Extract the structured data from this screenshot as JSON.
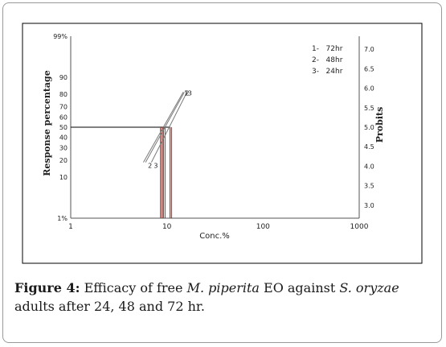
{
  "chart_data": {
    "type": "line",
    "xlabel": "Conc.%",
    "ylabel": "Response percentage",
    "y2label": "Probits",
    "x_scale": "log",
    "y_scale": "probit",
    "xlim": [
      1,
      1000
    ],
    "ylim": [
      1,
      99
    ],
    "y2lim": [
      2.67,
      7.33
    ],
    "x_ticks": [
      "1",
      "10",
      "100",
      "1000"
    ],
    "y_ticks": [
      "99%",
      "90",
      "80",
      "70",
      "60",
      "50",
      "40",
      "30",
      "20",
      "10",
      "1%"
    ],
    "y2_ticks": [
      "7.0",
      "6.5",
      "6.0",
      "5.5",
      "5.0",
      "4.5",
      "4.0",
      "3.5",
      "3.0"
    ],
    "legend": [
      "1-   72hr",
      "2-   48hr",
      "3-   24hr"
    ],
    "legend_position": "top-right",
    "series": [
      {
        "label_top": "1",
        "label_bottom": "",
        "x": [
          5.7,
          14.8
        ],
        "probit": [
          4.1,
          5.9
        ],
        "lc50": 8.6
      },
      {
        "label_top": "2",
        "label_bottom": "2",
        "x": [
          6.0,
          15.2
        ],
        "probit": [
          4.1,
          5.9
        ],
        "lc50": 9.2
      },
      {
        "label_top": "3",
        "label_bottom": "3",
        "x": [
          6.9,
          16.2
        ],
        "probit": [
          4.1,
          5.9
        ],
        "lc50": 10.8
      }
    ],
    "reference_line_probit": 5.0,
    "colors": {
      "frame": "#000000",
      "axis": "#555555",
      "fit_line": "#7a7a7a",
      "lc_line": "#c0392b",
      "ref_line": "#000000"
    }
  },
  "caption": {
    "label": "Figure 4:",
    "t1": " Efficacy of free ",
    "i1": "M. piperita",
    "t2": " EO against ",
    "i2": "S. oryzae",
    "t3": " adults after 24, 48 and 72 hr."
  }
}
